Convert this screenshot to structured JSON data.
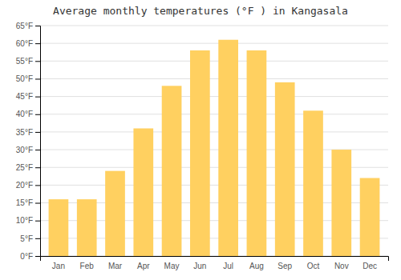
{
  "chart_data": {
    "type": "bar",
    "title": "Average monthly temperatures (°F ) in Kangasala",
    "categories": [
      "Jan",
      "Feb",
      "Mar",
      "Apr",
      "May",
      "Jun",
      "Jul",
      "Aug",
      "Sep",
      "Oct",
      "Nov",
      "Dec"
    ],
    "values": [
      16,
      16,
      24,
      36,
      48,
      58,
      61,
      58,
      49,
      41,
      30,
      22
    ],
    "color": "#FFD060",
    "ylim": [
      0,
      65
    ],
    "yticks": [
      {
        "value": 0,
        "label": "0°F"
      },
      {
        "value": 5,
        "label": "5°F"
      },
      {
        "value": 10,
        "label": "10°F"
      },
      {
        "value": 15,
        "label": "15°F"
      },
      {
        "value": 20,
        "label": "20°F"
      },
      {
        "value": 25,
        "label": "25°F"
      },
      {
        "value": 30,
        "label": "30°F"
      },
      {
        "value": 35,
        "label": "35°F"
      },
      {
        "value": 40,
        "label": "40°F"
      },
      {
        "value": 45,
        "label": "45°F"
      },
      {
        "value": 50,
        "label": "50°F"
      },
      {
        "value": 55,
        "label": "55°F"
      },
      {
        "value": 60,
        "label": "60°F"
      },
      {
        "value": 65,
        "label": "65°F"
      }
    ],
    "grid": true
  }
}
